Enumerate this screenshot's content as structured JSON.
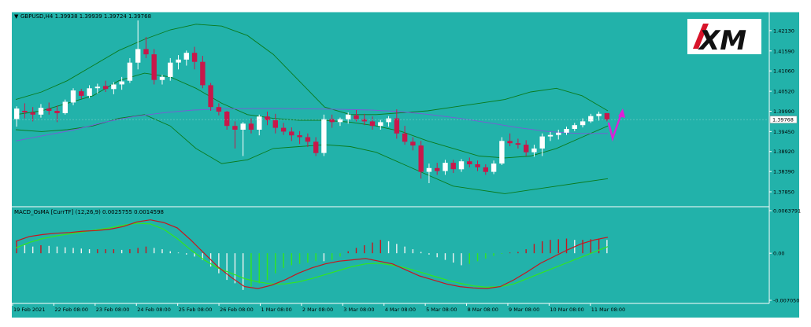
{
  "header": {
    "symbol_info": "GBPUSD,H4  1.39938 1.39939 1.39724 1.39768"
  },
  "indicator": {
    "label": "MACD_OsMA [CurrTF] (12,26,9) 0.0025755 0.0014598"
  },
  "logo": {
    "text": "XM"
  },
  "colors": {
    "background": "#22b2aa",
    "bull_candle": "#ffffff",
    "bear_candle": "#c8174a",
    "bollinger": "#0a7a1c",
    "moving_average": "#7a5ad6",
    "macd_line": "#c8141e",
    "signal_line": "#32e61e",
    "arrow": "#e01fd8"
  },
  "price_axis": {
    "ticks": [
      "1.42130",
      "1.41590",
      "1.41060",
      "1.40520",
      "1.39990",
      "1.39450",
      "1.38920",
      "1.38390",
      "1.37850"
    ],
    "current_price": "1.39768"
  },
  "macd_axis": {
    "ticks": [
      "0.0063791",
      "0.00",
      "-0.007050"
    ]
  },
  "time_axis": {
    "ticks": [
      "19 Feb 2021",
      "22 Feb 08:00",
      "23 Feb 08:00",
      "24 Feb 08:00",
      "25 Feb 08:00",
      "26 Feb 08:00",
      "1 Mar 08:00",
      "2 Mar 08:00",
      "3 Mar 08:00",
      "4 Mar 08:00",
      "5 Mar 08:00",
      "8 Mar 08:00",
      "9 Mar 08:00",
      "10 Mar 08:00",
      "11 Mar 08:00"
    ]
  },
  "chart_data": {
    "type": "candlestick",
    "symbol": "GBPUSD",
    "timeframe": "H4",
    "ylim": [
      1.376,
      1.424
    ],
    "candles": [
      {
        "o": 1.3978,
        "h": 1.4012,
        "l": 1.3958,
        "c": 1.4006
      },
      {
        "o": 1.4,
        "h": 1.402,
        "l": 1.398,
        "c": 1.3996
      },
      {
        "o": 1.3996,
        "h": 1.401,
        "l": 1.3972,
        "c": 1.399
      },
      {
        "o": 1.399,
        "h": 1.4018,
        "l": 1.3982,
        "c": 1.4008
      },
      {
        "o": 1.4006,
        "h": 1.4022,
        "l": 1.399,
        "c": 1.4
      },
      {
        "o": 1.4,
        "h": 1.4014,
        "l": 1.397,
        "c": 1.3994
      },
      {
        "o": 1.3994,
        "h": 1.403,
        "l": 1.399,
        "c": 1.4024
      },
      {
        "o": 1.4022,
        "h": 1.406,
        "l": 1.4015,
        "c": 1.4054
      },
      {
        "o": 1.4052,
        "h": 1.4058,
        "l": 1.4032,
        "c": 1.404
      },
      {
        "o": 1.404,
        "h": 1.4068,
        "l": 1.4034,
        "c": 1.406
      },
      {
        "o": 1.406,
        "h": 1.4072,
        "l": 1.4046,
        "c": 1.4064
      },
      {
        "o": 1.4066,
        "h": 1.408,
        "l": 1.405,
        "c": 1.4058
      },
      {
        "o": 1.4058,
        "h": 1.4076,
        "l": 1.4044,
        "c": 1.407
      },
      {
        "o": 1.407,
        "h": 1.409,
        "l": 1.4056,
        "c": 1.4078
      },
      {
        "o": 1.408,
        "h": 1.414,
        "l": 1.4074,
        "c": 1.4128
      },
      {
        "o": 1.4128,
        "h": 1.424,
        "l": 1.411,
        "c": 1.4164
      },
      {
        "o": 1.4164,
        "h": 1.4196,
        "l": 1.414,
        "c": 1.415
      },
      {
        "o": 1.415,
        "h": 1.4164,
        "l": 1.407,
        "c": 1.4082
      },
      {
        "o": 1.4082,
        "h": 1.4096,
        "l": 1.407,
        "c": 1.409
      },
      {
        "o": 1.409,
        "h": 1.414,
        "l": 1.408,
        "c": 1.4128
      },
      {
        "o": 1.4128,
        "h": 1.4148,
        "l": 1.411,
        "c": 1.4136
      },
      {
        "o": 1.4136,
        "h": 1.416,
        "l": 1.412,
        "c": 1.4154
      },
      {
        "o": 1.4154,
        "h": 1.417,
        "l": 1.411,
        "c": 1.413
      },
      {
        "o": 1.413,
        "h": 1.4146,
        "l": 1.406,
        "c": 1.4068
      },
      {
        "o": 1.4068,
        "h": 1.4074,
        "l": 1.4,
        "c": 1.401
      },
      {
        "o": 1.401,
        "h": 1.402,
        "l": 1.3988,
        "c": 1.3998
      },
      {
        "o": 1.3998,
        "h": 1.4,
        "l": 1.395,
        "c": 1.396
      },
      {
        "o": 1.396,
        "h": 1.3972,
        "l": 1.39,
        "c": 1.395
      },
      {
        "o": 1.395,
        "h": 1.397,
        "l": 1.388,
        "c": 1.3966
      },
      {
        "o": 1.3966,
        "h": 1.398,
        "l": 1.394,
        "c": 1.395
      },
      {
        "o": 1.395,
        "h": 1.399,
        "l": 1.3935,
        "c": 1.3985
      },
      {
        "o": 1.3985,
        "h": 1.3998,
        "l": 1.3962,
        "c": 1.3975
      },
      {
        "o": 1.3975,
        "h": 1.3992,
        "l": 1.394,
        "c": 1.3955
      },
      {
        "o": 1.3955,
        "h": 1.3968,
        "l": 1.3936,
        "c": 1.3945
      },
      {
        "o": 1.3945,
        "h": 1.3956,
        "l": 1.392,
        "c": 1.3935
      },
      {
        "o": 1.3935,
        "h": 1.3946,
        "l": 1.3912,
        "c": 1.393
      },
      {
        "o": 1.393,
        "h": 1.394,
        "l": 1.3904,
        "c": 1.3918
      },
      {
        "o": 1.3918,
        "h": 1.393,
        "l": 1.388,
        "c": 1.3888
      },
      {
        "o": 1.3888,
        "h": 1.399,
        "l": 1.388,
        "c": 1.3978
      },
      {
        "o": 1.3978,
        "h": 1.399,
        "l": 1.3955,
        "c": 1.397
      },
      {
        "o": 1.397,
        "h": 1.3982,
        "l": 1.396,
        "c": 1.3978
      },
      {
        "o": 1.3978,
        "h": 1.3996,
        "l": 1.3966,
        "c": 1.399
      },
      {
        "o": 1.3988,
        "h": 1.4002,
        "l": 1.3972,
        "c": 1.3978
      },
      {
        "o": 1.3978,
        "h": 1.3992,
        "l": 1.3962,
        "c": 1.3972
      },
      {
        "o": 1.3972,
        "h": 1.3985,
        "l": 1.395,
        "c": 1.396
      },
      {
        "o": 1.396,
        "h": 1.3976,
        "l": 1.395,
        "c": 1.397
      },
      {
        "o": 1.397,
        "h": 1.3986,
        "l": 1.3958,
        "c": 1.398
      },
      {
        "o": 1.398,
        "h": 1.4004,
        "l": 1.3926,
        "c": 1.394
      },
      {
        "o": 1.394,
        "h": 1.396,
        "l": 1.391,
        "c": 1.3918
      },
      {
        "o": 1.3918,
        "h": 1.393,
        "l": 1.3895,
        "c": 1.3908
      },
      {
        "o": 1.3908,
        "h": 1.392,
        "l": 1.382,
        "c": 1.3838
      },
      {
        "o": 1.3838,
        "h": 1.386,
        "l": 1.3808,
        "c": 1.3848
      },
      {
        "o": 1.3848,
        "h": 1.3862,
        "l": 1.383,
        "c": 1.384
      },
      {
        "o": 1.384,
        "h": 1.387,
        "l": 1.383,
        "c": 1.3862
      },
      {
        "o": 1.3862,
        "h": 1.387,
        "l": 1.3835,
        "c": 1.3845
      },
      {
        "o": 1.3845,
        "h": 1.3872,
        "l": 1.3838,
        "c": 1.3866
      },
      {
        "o": 1.3866,
        "h": 1.3876,
        "l": 1.385,
        "c": 1.3858
      },
      {
        "o": 1.3858,
        "h": 1.3868,
        "l": 1.384,
        "c": 1.385
      },
      {
        "o": 1.385,
        "h": 1.3858,
        "l": 1.383,
        "c": 1.3838
      },
      {
        "o": 1.3838,
        "h": 1.3868,
        "l": 1.3832,
        "c": 1.386
      },
      {
        "o": 1.386,
        "h": 1.393,
        "l": 1.3856,
        "c": 1.392
      },
      {
        "o": 1.392,
        "h": 1.394,
        "l": 1.3906,
        "c": 1.3914
      },
      {
        "o": 1.3914,
        "h": 1.3926,
        "l": 1.39,
        "c": 1.391
      },
      {
        "o": 1.391,
        "h": 1.3922,
        "l": 1.388,
        "c": 1.389
      },
      {
        "o": 1.389,
        "h": 1.391,
        "l": 1.3878,
        "c": 1.39
      },
      {
        "o": 1.39,
        "h": 1.394,
        "l": 1.388,
        "c": 1.3932
      },
      {
        "o": 1.3932,
        "h": 1.3944,
        "l": 1.392,
        "c": 1.3936
      },
      {
        "o": 1.3936,
        "h": 1.395,
        "l": 1.3924,
        "c": 1.3942
      },
      {
        "o": 1.3942,
        "h": 1.3958,
        "l": 1.3936,
        "c": 1.3952
      },
      {
        "o": 1.3952,
        "h": 1.3968,
        "l": 1.3946,
        "c": 1.3962
      },
      {
        "o": 1.3962,
        "h": 1.398,
        "l": 1.3956,
        "c": 1.3972
      },
      {
        "o": 1.3972,
        "h": 1.3992,
        "l": 1.3968,
        "c": 1.3986
      },
      {
        "o": 1.3986,
        "h": 1.3998,
        "l": 1.3974,
        "c": 1.3992
      },
      {
        "o": 1.3994,
        "h": 1.3994,
        "l": 1.3972,
        "c": 1.3977
      }
    ],
    "bollinger_upper": [
      1.403,
      1.405,
      1.408,
      1.412,
      1.416,
      1.419,
      1.4215,
      1.423,
      1.4225,
      1.42,
      1.415,
      1.408,
      1.401,
      1.399,
      1.399,
      1.3995,
      1.4,
      1.401,
      1.402,
      1.403,
      1.405,
      1.406,
      1.404,
      1.4
    ],
    "bollinger_middle": [
      1.399,
      1.4,
      1.402,
      1.404,
      1.408,
      1.41,
      1.409,
      1.406,
      1.402,
      1.399,
      1.398,
      1.3975,
      1.3975,
      1.397,
      1.396,
      1.3945,
      1.392,
      1.39,
      1.388,
      1.3875,
      1.388,
      1.39,
      1.393,
      1.396
    ],
    "bollinger_lower": [
      1.395,
      1.3945,
      1.395,
      1.396,
      1.398,
      1.399,
      1.396,
      1.39,
      1.386,
      1.387,
      1.39,
      1.3905,
      1.391,
      1.3905,
      1.389,
      1.386,
      1.383,
      1.38,
      1.379,
      1.378,
      1.379,
      1.38,
      1.381,
      1.382
    ],
    "moving_average": [
      1.392,
      1.3935,
      1.395,
      1.397,
      1.3985,
      1.3995,
      1.4002,
      1.4005,
      1.4006,
      1.4006,
      1.4005,
      1.4004,
      1.4002,
      1.3998,
      1.399,
      1.398,
      1.3968,
      1.3955,
      1.3945,
      1.394,
      1.394
    ],
    "macd_hist": [
      0.0018,
      0.0012,
      0.001,
      0.0012,
      0.0011,
      0.001,
      0.0009,
      0.0008,
      0.0007,
      0.0006,
      0.0006,
      0.0006,
      0.0006,
      0.0005,
      0.0006,
      0.0008,
      0.001,
      0.0008,
      0.0006,
      0.0003,
      0.0001,
      -0.0002,
      -0.0005,
      -0.001,
      -0.002,
      -0.003,
      -0.004,
      -0.0045,
      -0.0055,
      -0.005,
      -0.0045,
      -0.004,
      -0.003,
      -0.0022,
      -0.0018,
      -0.0016,
      -0.0014,
      -0.0012,
      -0.0012,
      -0.001,
      -0.0005,
      0.0003,
      0.0008,
      0.0012,
      0.0016,
      0.002,
      0.0018,
      0.0014,
      0.001,
      0.0006,
      0.0002,
      -0.0002,
      -0.0006,
      -0.001,
      -0.0014,
      -0.0018,
      -0.0016,
      -0.0012,
      -0.0008,
      -0.0004,
      -0.0001,
      0.0001,
      0.0002,
      0.0006,
      0.0014,
      0.0018,
      0.002,
      0.0021,
      0.0022,
      0.002,
      0.002,
      0.0021,
      0.0022,
      0.002
    ],
    "macd_line": [
      0.0018,
      0.0025,
      0.0028,
      0.003,
      0.0031,
      0.0033,
      0.0034,
      0.0036,
      0.004,
      0.0047,
      0.005,
      0.0046,
      0.0038,
      0.002,
      0.0,
      -0.002,
      -0.0036,
      -0.005,
      -0.0053,
      -0.0048,
      -0.004,
      -0.003,
      -0.0022,
      -0.0016,
      -0.0012,
      -0.001,
      -0.0008,
      -0.0012,
      -0.0016,
      -0.0025,
      -0.0034,
      -0.004,
      -0.0046,
      -0.005,
      -0.0052,
      -0.0053,
      -0.005,
      -0.004,
      -0.0028,
      -0.0015,
      -0.0005,
      0.0005,
      0.0014,
      0.002,
      0.0024
    ],
    "signal_line": [
      0.0008,
      0.0016,
      0.0022,
      0.0026,
      0.0029,
      0.0032,
      0.0035,
      0.0038,
      0.0042,
      0.0045,
      0.0044,
      0.0036,
      0.0022,
      0.0005,
      -0.001,
      -0.0022,
      -0.003,
      -0.0038,
      -0.0043,
      -0.0046,
      -0.0046,
      -0.0043,
      -0.0038,
      -0.0032,
      -0.0026,
      -0.002,
      -0.0016,
      -0.0015,
      -0.0018,
      -0.0022,
      -0.0028,
      -0.0034,
      -0.004,
      -0.0045,
      -0.0049,
      -0.0051,
      -0.005,
      -0.0046,
      -0.0038,
      -0.003,
      -0.0022,
      -0.0014,
      -0.0006,
      0.0002,
      0.001
    ],
    "macd_ylim": [
      -0.00705,
      0.00638
    ]
  }
}
